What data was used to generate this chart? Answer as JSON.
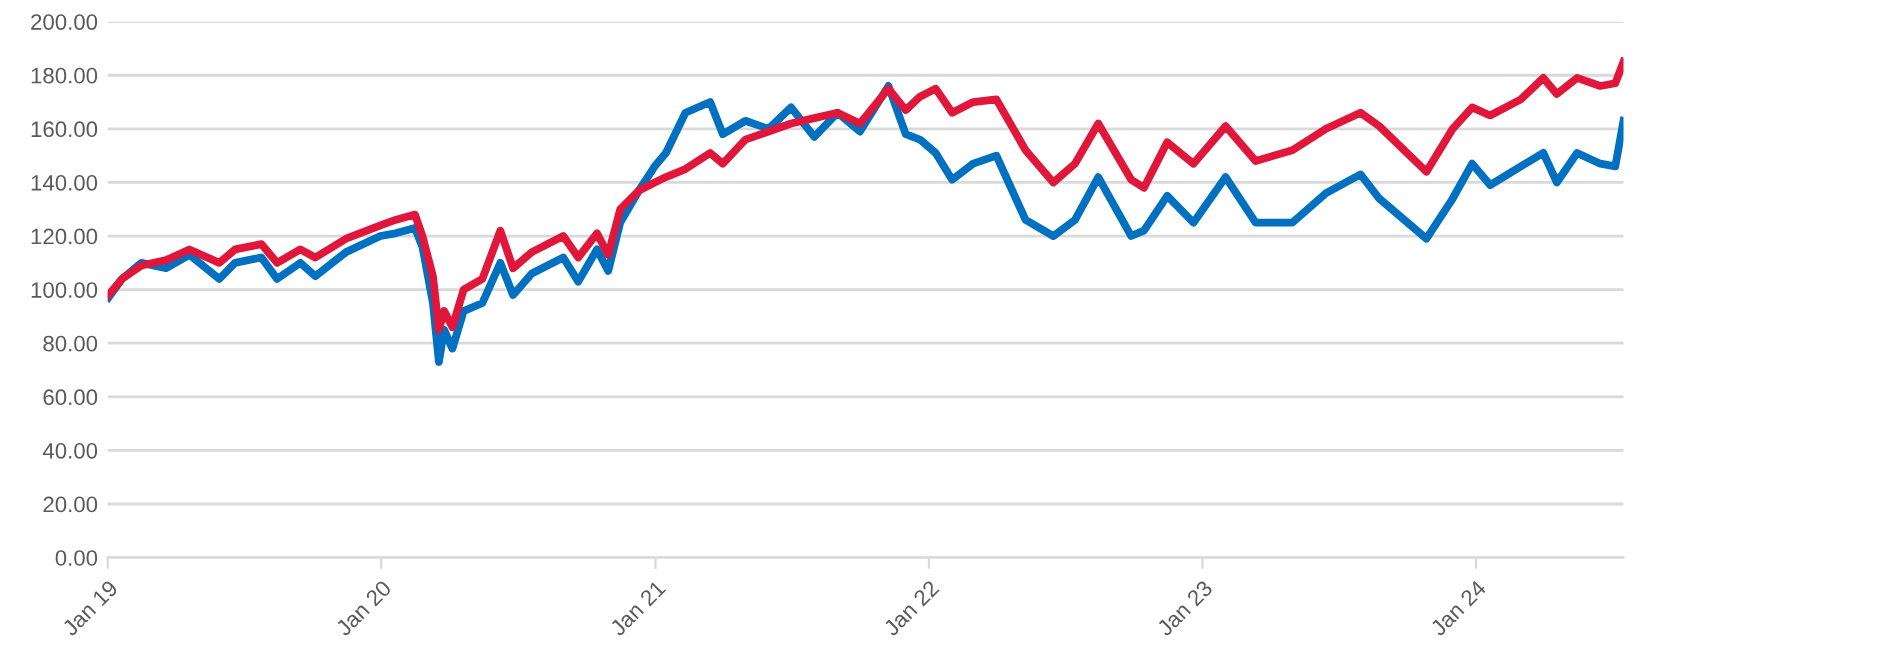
{
  "chart_data": {
    "type": "line",
    "x": [
      "2019-01-02",
      "2019-01-20",
      "2019-02-15",
      "2019-03-20",
      "2019-04-20",
      "2019-05-30",
      "2019-06-20",
      "2019-07-25",
      "2019-08-15",
      "2019-09-15",
      "2019-10-05",
      "2019-11-15",
      "2019-12-31",
      "2020-01-20",
      "2020-02-15",
      "2020-02-25",
      "2020-03-10",
      "2020-03-18",
      "2020-03-25",
      "2020-04-05",
      "2020-04-20",
      "2020-05-15",
      "2020-06-08",
      "2020-06-25",
      "2020-07-20",
      "2020-08-31",
      "2020-09-20",
      "2020-10-15",
      "2020-10-30",
      "2020-11-15",
      "2020-12-10",
      "2020-12-31",
      "2021-01-15",
      "2021-02-10",
      "2021-03-15",
      "2021-04-01",
      "2021-05-01",
      "2021-06-01",
      "2021-07-01",
      "2021-08-01",
      "2021-09-01",
      "2021-10-01",
      "2021-11-08",
      "2021-12-01",
      "2021-12-20",
      "2022-01-10",
      "2022-02-01",
      "2022-03-01",
      "2022-04-01",
      "2022-05-10",
      "2022-06-16",
      "2022-07-15",
      "2022-08-15",
      "2022-09-28",
      "2022-10-15",
      "2022-11-15",
      "2022-12-20",
      "2023-02-01",
      "2023-03-13",
      "2023-05-01",
      "2023-06-15",
      "2023-07-31",
      "2023-08-25",
      "2023-10-27",
      "2023-12-01",
      "2023-12-27",
      "2024-01-20",
      "2024-03-01",
      "2024-03-31",
      "2024-04-18",
      "2024-05-15",
      "2024-06-15",
      "2024-07-05",
      "2024-07-16"
    ],
    "series": [
      {
        "color": "#0070c0",
        "values": [
          97,
          104,
          110,
          108,
          113,
          104,
          110,
          112,
          104,
          110,
          105,
          114,
          120,
          121,
          123,
          116,
          95,
          73,
          85,
          78,
          92,
          95,
          110,
          98,
          106,
          112,
          103,
          115,
          107,
          125,
          137,
          146,
          151,
          166,
          170,
          158,
          163,
          160,
          168,
          157,
          166,
          159,
          176,
          158,
          156,
          151,
          141,
          147,
          150,
          126,
          120,
          126,
          142,
          120,
          122,
          135,
          125,
          142,
          125,
          125,
          136,
          143,
          134,
          119,
          134,
          147,
          139,
          146,
          151,
          140,
          151,
          147,
          146,
          163
        ]
      },
      {
        "color": "#e0163a",
        "values": [
          98,
          104,
          109,
          111,
          115,
          110,
          115,
          117,
          110,
          115,
          112,
          119,
          124,
          126,
          128,
          120,
          105,
          85,
          92,
          86,
          100,
          104,
          122,
          108,
          114,
          120,
          112,
          121,
          113,
          130,
          137,
          140,
          142,
          145,
          151,
          147,
          156,
          159,
          162,
          164,
          166,
          162,
          175,
          167,
          172,
          175,
          166,
          170,
          171,
          152,
          140,
          147,
          162,
          141,
          138,
          155,
          147,
          161,
          148,
          152,
          160,
          166,
          161,
          144,
          160,
          168,
          165,
          171,
          179,
          173,
          179,
          176,
          177,
          185
        ]
      }
    ],
    "xlim": [
      "2019-01-01",
      "2024-07-16"
    ],
    "xticks": [
      {
        "value": "2019-01-01",
        "label": "Jan 19"
      },
      {
        "value": "2020-01-01",
        "label": "Jan 20"
      },
      {
        "value": "2021-01-01",
        "label": "Jan 21"
      },
      {
        "value": "2022-01-01",
        "label": "Jan 22"
      },
      {
        "value": "2023-01-01",
        "label": "Jan 23"
      },
      {
        "value": "2024-01-01",
        "label": "Jan 24"
      }
    ],
    "ylim": [
      0,
      200
    ],
    "yticks": [
      {
        "value": 0,
        "label": "0.00"
      },
      {
        "value": 20,
        "label": "20.00"
      },
      {
        "value": 40,
        "label": "40.00"
      },
      {
        "value": 60,
        "label": "60.00"
      },
      {
        "value": 80,
        "label": "80.00"
      },
      {
        "value": 100,
        "label": "100.00"
      },
      {
        "value": 120,
        "label": "120.00"
      },
      {
        "value": 140,
        "label": "140.00"
      },
      {
        "value": 160,
        "label": "160.00"
      },
      {
        "value": 180,
        "label": "180.00"
      },
      {
        "value": 200,
        "label": "200.00"
      }
    ],
    "grid": "y"
  }
}
